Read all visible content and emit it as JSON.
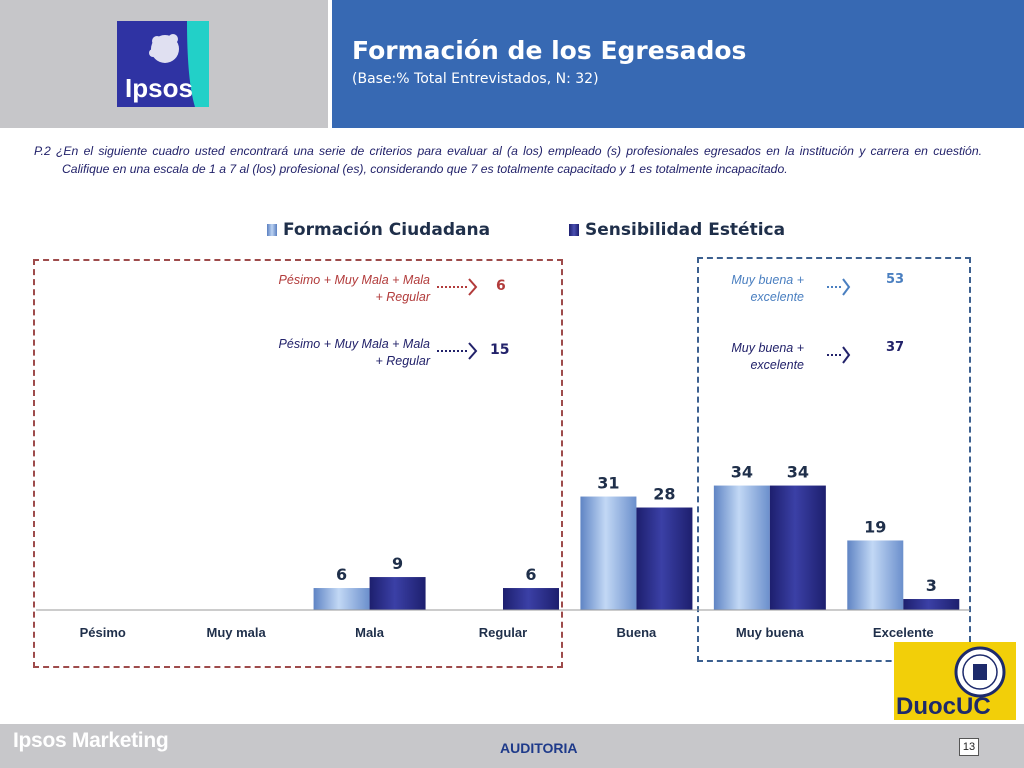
{
  "header": {
    "logo_text": "Ipsos",
    "title": "Formación de los Egresados",
    "subtitle": "(Base:% Total Entrevistados, N: 32)"
  },
  "question": "P.2 ¿En el siguiente cuadro usted encontrará una serie de criterios para evaluar al (a los) empleado (s) profesionales egresados en la institución y carrera en cuestión. Califique en una escala de 1 a 7 al (los) profesional (es), considerando que 7 es totalmente capacitado y 1 es totalmente incapacitado.",
  "annotations": {
    "low_1_label_a": "Pésimo + Muy Mala + Mala",
    "low_1_label_b": "+ Regular",
    "low_1_value": "6",
    "low_2_label_a": "Pésimo + Muy Mala + Mala",
    "low_2_label_b": "+ Regular",
    "low_2_value": "15",
    "high_1_label_a": "Muy buena +",
    "high_1_label_b": "excelente",
    "high_1_value": "53",
    "high_2_label_a": "Muy buena +",
    "high_2_label_b": "excelente",
    "high_2_value": "37"
  },
  "colors": {
    "header_blue": "#3769b3",
    "series_1": "#8fb1e6",
    "series_2": "#2a2d86",
    "low_box": "#9e4b4b",
    "high_box": "#3b5f8f"
  },
  "chart_data": {
    "type": "bar",
    "categories": [
      "Pésimo",
      "Muy mala",
      "Mala",
      "Regular",
      "Buena",
      "Muy buena",
      "Excelente"
    ],
    "series": [
      {
        "name": "Formación Ciudadana",
        "values": [
          null,
          null,
          6,
          null,
          31,
          34,
          19
        ]
      },
      {
        "name": "Sensibilidad Estética",
        "values": [
          null,
          null,
          9,
          6,
          28,
          34,
          3
        ]
      }
    ],
    "ylim": [
      0,
      40
    ],
    "grid": false,
    "legend": "top"
  },
  "footer": {
    "brand": "Ipsos Marketing",
    "section": "AUDITORIA",
    "page": "13",
    "partner_logo": "DuocUC"
  }
}
